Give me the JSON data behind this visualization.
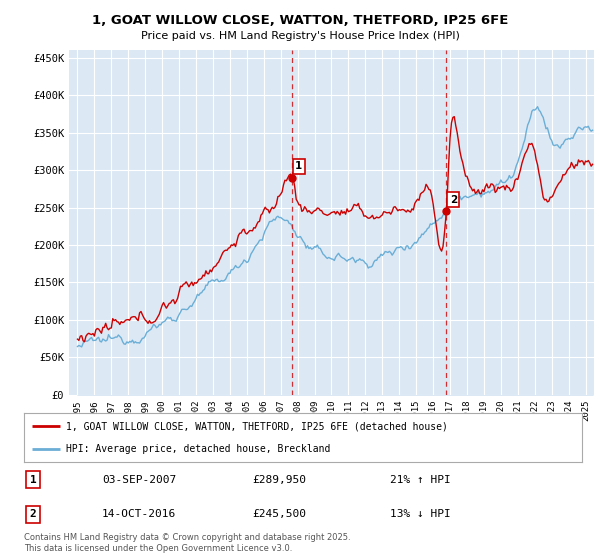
{
  "title": "1, GOAT WILLOW CLOSE, WATTON, THETFORD, IP25 6FE",
  "subtitle": "Price paid vs. HM Land Registry's House Price Index (HPI)",
  "ylabel_ticks": [
    "£0",
    "£50K",
    "£100K",
    "£150K",
    "£200K",
    "£250K",
    "£300K",
    "£350K",
    "£400K",
    "£450K"
  ],
  "ytick_values": [
    0,
    50000,
    100000,
    150000,
    200000,
    250000,
    300000,
    350000,
    400000,
    450000
  ],
  "ylim": [
    0,
    460000
  ],
  "xlim_start": 1994.5,
  "xlim_end": 2025.5,
  "xtick_years": [
    1995,
    1996,
    1997,
    1998,
    1999,
    2000,
    2001,
    2002,
    2003,
    2004,
    2005,
    2006,
    2007,
    2008,
    2009,
    2010,
    2011,
    2012,
    2013,
    2014,
    2015,
    2016,
    2017,
    2018,
    2019,
    2020,
    2021,
    2022,
    2023,
    2024,
    2025
  ],
  "hpi_color": "#6baed6",
  "price_color": "#cc0000",
  "sale1_x": 2007.67,
  "sale1_y": 289950,
  "sale1_label": "1",
  "sale2_x": 2016.79,
  "sale2_y": 245500,
  "sale2_label": "2",
  "legend_line1": "1, GOAT WILLOW CLOSE, WATTON, THETFORD, IP25 6FE (detached house)",
  "legend_line2": "HPI: Average price, detached house, Breckland",
  "table_row1": [
    "1",
    "03-SEP-2007",
    "£289,950",
    "21% ↑ HPI"
  ],
  "table_row2": [
    "2",
    "14-OCT-2016",
    "£245,500",
    "13% ↓ HPI"
  ],
  "footer": "Contains HM Land Registry data © Crown copyright and database right 2025.\nThis data is licensed under the Open Government Licence v3.0.",
  "background_color": "#ffffff",
  "plot_bg_color": "#dce9f5",
  "hpi_fill_color": "#dce9f5",
  "shade_between_color": "#dce9f5"
}
